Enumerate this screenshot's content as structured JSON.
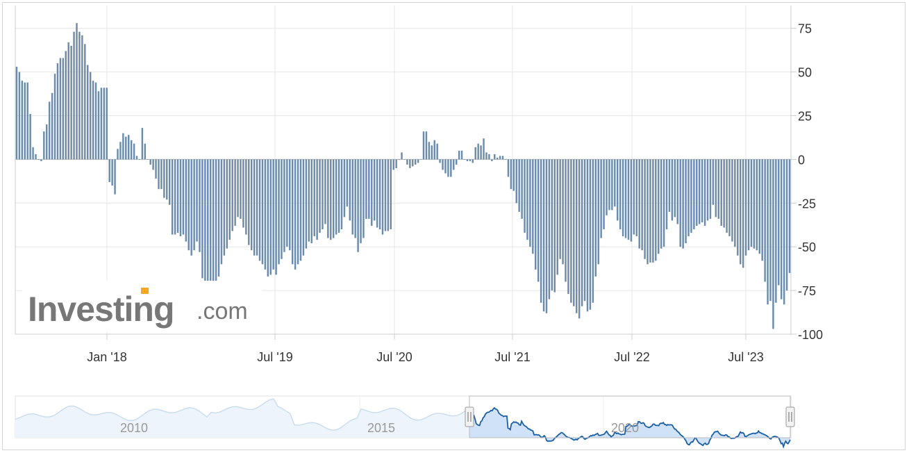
{
  "chart_data": {
    "type": "bar",
    "title": "",
    "xlabel": "",
    "ylabel": "",
    "ylim": [
      -100,
      88
    ],
    "y_ticks": [
      "75",
      "50",
      "25",
      "0",
      "-25",
      "-50",
      "-75",
      "-100"
    ],
    "x_ticks": [
      "Jan '18",
      "Jul '19",
      "Jul '20",
      "Jul '21",
      "Jul '22",
      "Jul '23"
    ],
    "grid": true,
    "bar_color": "#6b8bad",
    "series": [
      {
        "values": [
          53,
          50,
          45,
          44,
          44,
          26,
          7,
          3,
          0,
          -1,
          16,
          20,
          33,
          38,
          49,
          55,
          58,
          58,
          62,
          67,
          65,
          73,
          78,
          73,
          71,
          66,
          54,
          50,
          45,
          44,
          39,
          41,
          41,
          41,
          -13,
          -15,
          -20,
          6,
          10,
          15,
          13,
          14,
          11,
          9,
          2,
          0,
          18,
          9,
          0,
          -3,
          -6,
          -11,
          -17,
          -17,
          -22,
          -23,
          -26,
          -43,
          -43,
          -42,
          -44,
          -43,
          -47,
          -52,
          -55,
          -52,
          -47,
          -53,
          -68,
          -72,
          -71,
          -72,
          -71,
          -70,
          -67,
          -60,
          -55,
          -51,
          -46,
          -41,
          -38,
          -33,
          -34,
          -39,
          -43,
          -49,
          -52,
          -55,
          -55,
          -58,
          -60,
          -63,
          -67,
          -66,
          -63,
          -66,
          -60,
          -57,
          -53,
          -50,
          -52,
          -60,
          -63,
          -60,
          -58,
          -55,
          -51,
          -47,
          -48,
          -44,
          -46,
          -42,
          -40,
          -37,
          -45,
          -46,
          -45,
          -43,
          -42,
          -40,
          -33,
          -27,
          -35,
          -43,
          -45,
          -53,
          -48,
          -45,
          -34,
          -34,
          -38,
          -35,
          -39,
          -40,
          -43,
          -41,
          -41,
          -40,
          -6,
          -5,
          0,
          4,
          0,
          -3,
          -5,
          -4,
          -3,
          -2,
          0,
          16,
          16,
          10,
          8,
          11,
          9,
          -2,
          -6,
          -8,
          -10,
          -10,
          -6,
          -3,
          5,
          5,
          0,
          -1,
          -1,
          -2,
          7,
          9,
          8,
          12,
          4,
          3,
          -1,
          3,
          1,
          2,
          2,
          0,
          -10,
          -17,
          -18,
          -25,
          -30,
          -34,
          -42,
          -46,
          -50,
          -54,
          -63,
          -70,
          -82,
          -87,
          -88,
          -80,
          -75,
          -76,
          -66,
          -57,
          -60,
          -70,
          -77,
          -82,
          -84,
          -88,
          -91,
          -84,
          -81,
          -87,
          -86,
          -82,
          -67,
          -60,
          -45,
          -40,
          -32,
          -29,
          -29,
          -27,
          -35,
          -40,
          -44,
          -45,
          -46,
          -47,
          -43,
          -44,
          -51,
          -52,
          -57,
          -60,
          -59,
          -59,
          -58,
          -54,
          -51,
          -50,
          -40,
          -30,
          -35,
          -33,
          -37,
          -50,
          -51,
          -48,
          -44,
          -42,
          -40,
          -38,
          -37,
          -36,
          -38,
          -35,
          -34,
          -26,
          -33,
          -34,
          -38,
          -39,
          -42,
          -44,
          -47,
          -50,
          -55,
          -60,
          -62,
          -55,
          -52,
          -50,
          -51,
          -52,
          -54,
          -58,
          -70,
          -83,
          -81,
          -97,
          -82,
          -72,
          -80,
          -83,
          -75,
          -65
        ]
      }
    ],
    "navigator": {
      "labels": [
        "2010",
        "2015",
        "2020"
      ],
      "line_color": "#1a5fa6",
      "fill_color": "#cfe2f7",
      "handle_color": "#f2f2f2"
    },
    "logo": {
      "main_text": "Investing",
      "suffix_text": ".com",
      "accent_color": "#f5a623"
    }
  }
}
